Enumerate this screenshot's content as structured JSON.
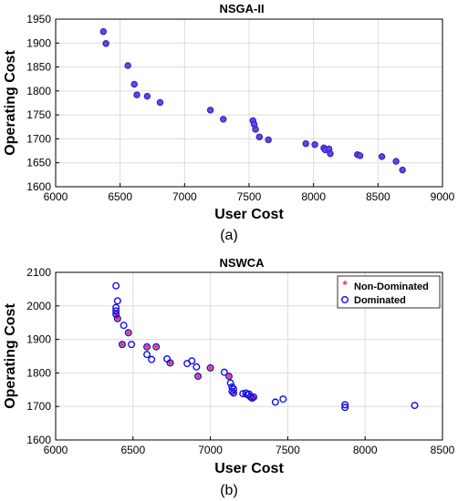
{
  "chart_data": [
    {
      "type": "scatter",
      "title": "NSGA-II",
      "xlabel": "User Cost",
      "ylabel": "Operating Cost",
      "caption": "(a)",
      "xlim": [
        6000,
        9000
      ],
      "ylim": [
        1600,
        1950
      ],
      "xticks": [
        "6000",
        "6500",
        "7000",
        "7500",
        "8000",
        "8500",
        "9000"
      ],
      "yticks": [
        "1600",
        "1650",
        "1700",
        "1750",
        "1800",
        "1850",
        "1900",
        "1950"
      ],
      "grid": true,
      "series": [
        {
          "color": "#2b2bd6",
          "fill": "#7b3fd0",
          "points": [
            [
              6370,
              1924
            ],
            [
              6390,
              1899
            ],
            [
              6560,
              1853
            ],
            [
              6610,
              1814
            ],
            [
              6630,
              1792
            ],
            [
              6710,
              1789
            ],
            [
              6810,
              1776
            ],
            [
              7200,
              1760
            ],
            [
              7300,
              1741
            ],
            [
              7530,
              1738
            ],
            [
              7540,
              1730
            ],
            [
              7550,
              1720
            ],
            [
              7580,
              1704
            ],
            [
              7650,
              1698
            ],
            [
              7940,
              1690
            ],
            [
              8010,
              1688
            ],
            [
              8080,
              1681
            ],
            [
              8090,
              1677
            ],
            [
              8120,
              1679
            ],
            [
              8130,
              1669
            ],
            [
              8340,
              1667
            ],
            [
              8360,
              1665
            ],
            [
              8530,
              1663
            ],
            [
              8640,
              1653
            ],
            [
              8690,
              1635
            ]
          ]
        }
      ]
    },
    {
      "type": "scatter",
      "title": "NSWCA",
      "xlabel": "User Cost",
      "ylabel": "Operating Cost",
      "caption": "(b)",
      "xlim": [
        6000,
        8500
      ],
      "ylim": [
        1600,
        2100
      ],
      "xticks": [
        "6000",
        "6500",
        "7000",
        "7500",
        "8000",
        "8500"
      ],
      "yticks": [
        "1600",
        "1700",
        "1800",
        "1900",
        "2000",
        "2100"
      ],
      "grid": true,
      "legend_position": "top-right",
      "series": [
        {
          "name": "Non-Dominated",
          "color": "#ff3333",
          "marker": "asterisk",
          "points": [
            [
              6390,
              1975
            ],
            [
              6400,
              1962
            ],
            [
              6430,
              1885
            ],
            [
              6470,
              1920
            ],
            [
              6590,
              1878
            ],
            [
              6650,
              1878
            ],
            [
              6740,
              1830
            ],
            [
              6920,
              1790
            ],
            [
              7000,
              1815
            ],
            [
              7120,
              1790
            ],
            [
              7150,
              1740
            ],
            [
              7220,
              1735
            ],
            [
              7260,
              1728
            ],
            [
              7270,
              1725
            ]
          ]
        },
        {
          "name": "Dominated",
          "color": "#1010ee",
          "marker": "circle",
          "points": [
            [
              6390,
              2060
            ],
            [
              6400,
              2015
            ],
            [
              6390,
              1995
            ],
            [
              6390,
              1985
            ],
            [
              6390,
              1975
            ],
            [
              6400,
              1962
            ],
            [
              6440,
              1942
            ],
            [
              6470,
              1920
            ],
            [
              6430,
              1885
            ],
            [
              6490,
              1885
            ],
            [
              6590,
              1878
            ],
            [
              6650,
              1878
            ],
            [
              6590,
              1855
            ],
            [
              6620,
              1840
            ],
            [
              6720,
              1842
            ],
            [
              6740,
              1830
            ],
            [
              6850,
              1828
            ],
            [
              6880,
              1836
            ],
            [
              6910,
              1818
            ],
            [
              6920,
              1790
            ],
            [
              7000,
              1815
            ],
            [
              7090,
              1802
            ],
            [
              7120,
              1790
            ],
            [
              7130,
              1770
            ],
            [
              7140,
              1758
            ],
            [
              7150,
              1752
            ],
            [
              7140,
              1745
            ],
            [
              7150,
              1740
            ],
            [
              7210,
              1738
            ],
            [
              7230,
              1740
            ],
            [
              7240,
              1735
            ],
            [
              7250,
              1737
            ],
            [
              7260,
              1728
            ],
            [
              7270,
              1725
            ],
            [
              7280,
              1728
            ],
            [
              7420,
              1713
            ],
            [
              7470,
              1722
            ],
            [
              7870,
              1705
            ],
            [
              7870,
              1697
            ],
            [
              8320,
              1703
            ]
          ]
        }
      ]
    }
  ]
}
